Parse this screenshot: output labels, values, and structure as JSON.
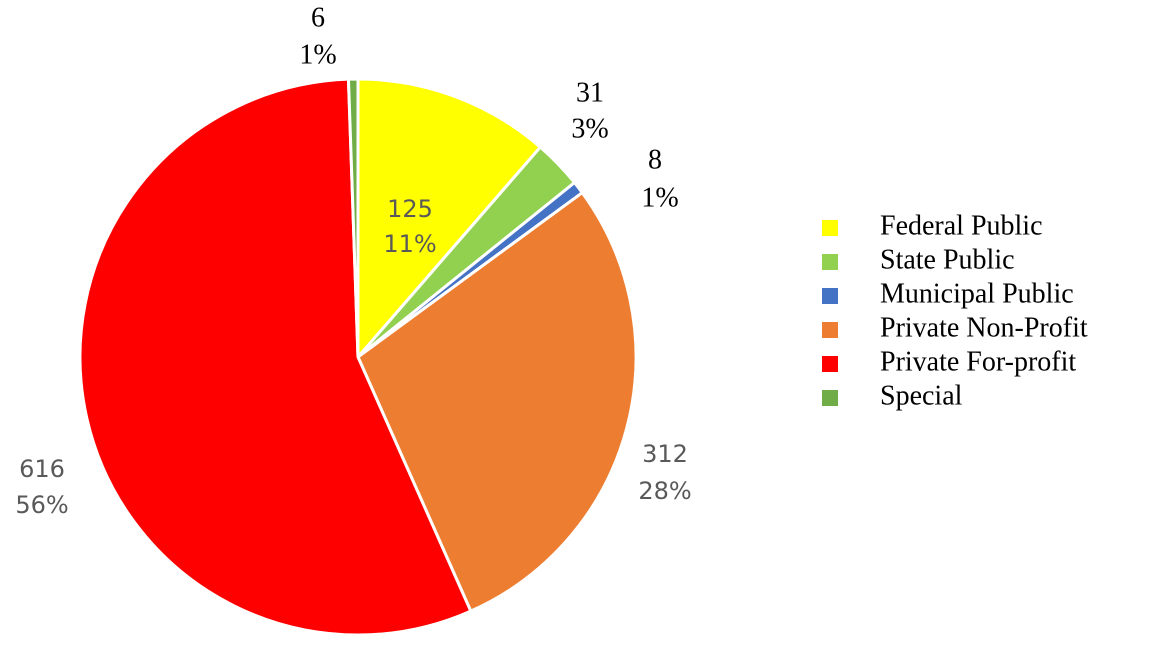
{
  "chart_data": {
    "type": "pie",
    "categories": [
      "Federal Public",
      "State Public",
      "Municipal Public",
      "Private Non-Profit",
      "Private For-profit",
      "Special"
    ],
    "values": [
      125,
      31,
      8,
      312,
      616,
      6
    ],
    "percent_labels": [
      "11%",
      "3%",
      "1%",
      "28%",
      "56%",
      "1%"
    ],
    "colors": [
      "#ffff00",
      "#92d050",
      "#4472c4",
      "#ed7d31",
      "#ff0000",
      "#70ad47"
    ],
    "legend": "right"
  }
}
